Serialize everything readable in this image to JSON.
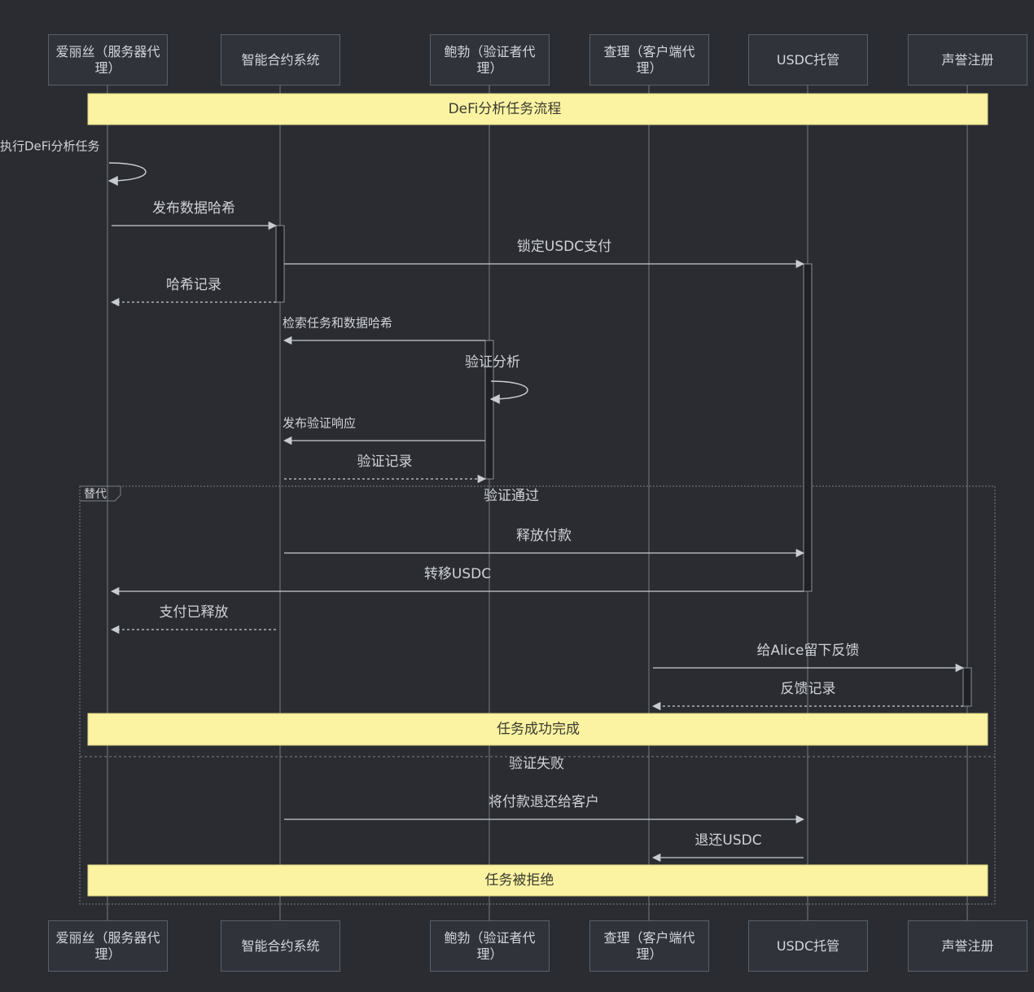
{
  "participants": [
    "爱丽丝（服务器代理）",
    "智能合约系统",
    "鲍勃（验证者代理）",
    "查理（客户端代理）",
    "USDC托管",
    "声誉注册"
  ],
  "notes": [
    "DeFi分析任务流程",
    "任务成功完成",
    "任务被拒绝"
  ],
  "messages": [
    "执行DeFi分析任务",
    "发布数据哈希",
    "锁定USDC支付",
    "哈希记录",
    "检索任务和数据哈希",
    "验证分析",
    "发布验证响应",
    "验证记录",
    "释放付款",
    "转移USDC",
    "支付已释放",
    "给Alice留下反馈",
    "反馈记录",
    "将付款退还给客户",
    "退还USDC"
  ],
  "fragment": {
    "label": "替代",
    "sections": [
      "验证通过",
      "验证失败"
    ]
  }
}
